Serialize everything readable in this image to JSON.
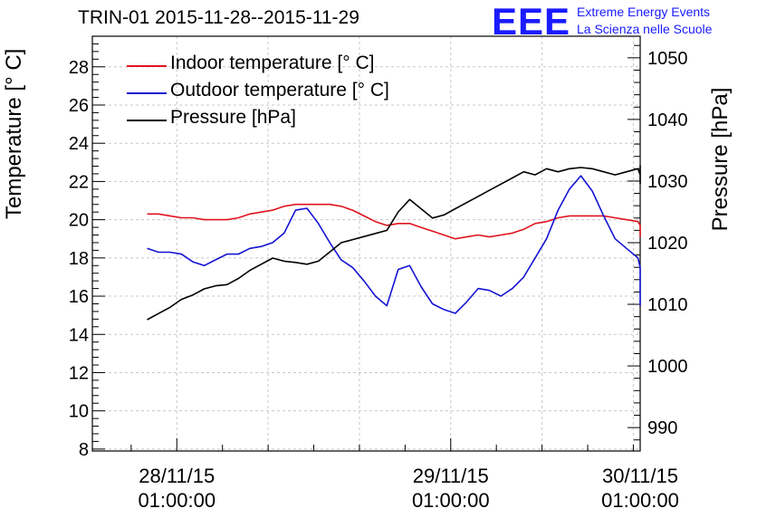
{
  "title": "TRIN-01 2015-11-28--2015-11-29",
  "branding": {
    "logo": "EEE",
    "line1": "Extreme Energy Events",
    "line2": "La Scienza nelle Scuole"
  },
  "colors": {
    "indoor": "#e0141e",
    "outdoor": "#1414d2",
    "pressure": "#000000",
    "brand": "#1a1aff",
    "grid": "#c8c8c8"
  },
  "chart_data": {
    "type": "line",
    "ylabel_left": "Temperature [° C]",
    "ylabel_right": "Pressure [hPa]",
    "ylim_left": [
      7.9,
      29.6
    ],
    "ylim_right": [
      986.2,
      1053.5
    ],
    "xlim_hours": [
      -7.4,
      40.6
    ],
    "x_ticks": [
      {
        "h": 0,
        "date": "28/11/15",
        "time": "01:00:00"
      },
      {
        "h": 24,
        "date": "29/11/15",
        "time": "01:00:00"
      },
      {
        "h": 48,
        "date": "30/11/15",
        "time": "01:00:00"
      }
    ],
    "y_ticks_left": [
      8,
      10,
      12,
      14,
      16,
      18,
      20,
      22,
      24,
      26,
      28
    ],
    "y_ticks_right": [
      990,
      1000,
      1010,
      1020,
      1030,
      1040,
      1050
    ],
    "grid": true,
    "legend_position": "top-left",
    "series": [
      {
        "name": "Indoor temperature [° C]",
        "axis": "left",
        "x": [
          -2.6,
          -1.6,
          -0.6,
          0.4,
          1.4,
          2.4,
          3.4,
          4.4,
          5.4,
          6.4,
          7.4,
          8.4,
          9.4,
          10.4,
          11.4,
          12.4,
          13.4,
          14.4,
          15.4,
          16.4,
          17.4,
          18.4,
          19.4,
          20.4,
          21.4,
          22.4,
          23.4,
          24.4,
          25.4,
          26.4,
          27.4,
          28.4,
          29.4,
          30.4,
          31.4,
          32.4,
          33.4,
          34.4,
          35.4,
          36.4,
          37.4,
          38.4,
          39.4,
          40.4,
          41.4,
          42.4,
          43.4,
          44.4,
          45.4,
          46.4
        ],
        "y": [
          20.3,
          20.3,
          20.2,
          20.1,
          20.1,
          20.0,
          20.0,
          20.0,
          20.1,
          20.3,
          20.4,
          20.5,
          20.7,
          20.8,
          20.8,
          20.8,
          20.8,
          20.7,
          20.5,
          20.2,
          19.9,
          19.7,
          19.8,
          19.8,
          19.6,
          19.4,
          19.2,
          19.0,
          19.1,
          19.2,
          19.1,
          19.2,
          19.3,
          19.5,
          19.8,
          19.9,
          20.1,
          20.2,
          20.2,
          20.2,
          20.2,
          20.1,
          20.0,
          19.9,
          19.7,
          19.5,
          19.4,
          19.3,
          19.2,
          19.1
        ]
      },
      {
        "name": "Outdoor temperature [° C]",
        "axis": "left",
        "x": [
          -2.6,
          -1.6,
          -0.6,
          0.4,
          1.4,
          2.4,
          3.4,
          4.4,
          5.4,
          6.4,
          7.4,
          8.4,
          9.4,
          10.4,
          11.4,
          12.4,
          13.4,
          14.4,
          15.4,
          16.4,
          17.4,
          18.4,
          19.4,
          20.4,
          21.4,
          22.4,
          23.4,
          24.4,
          25.4,
          26.4,
          27.4,
          28.4,
          29.4,
          30.4,
          31.4,
          32.4,
          33.4,
          34.4,
          35.4,
          36.4,
          37.4,
          38.4,
          39.4,
          40.4,
          41.4,
          42.4,
          43.4,
          44.4,
          45.4,
          46.4
        ],
        "y": [
          18.5,
          18.3,
          18.3,
          18.2,
          17.8,
          17.6,
          17.9,
          18.2,
          18.2,
          18.5,
          18.6,
          18.8,
          19.3,
          20.5,
          20.6,
          19.8,
          18.8,
          17.9,
          17.5,
          16.8,
          16.0,
          15.5,
          17.4,
          17.6,
          16.5,
          15.6,
          15.3,
          15.1,
          15.7,
          16.4,
          16.3,
          16.0,
          16.4,
          17.0,
          18.0,
          19.0,
          20.5,
          21.6,
          22.3,
          21.5,
          20.2,
          19.0,
          18.5,
          18.0,
          17.5,
          17.0,
          16.9,
          16.8,
          16.1,
          15.5
        ]
      },
      {
        "name": "Pressure [hPa]",
        "axis": "right",
        "x": [
          -2.6,
          -1.6,
          -0.6,
          0.4,
          1.4,
          2.4,
          3.4,
          4.4,
          5.4,
          6.4,
          7.4,
          8.4,
          9.4,
          10.4,
          11.4,
          12.4,
          13.4,
          14.4,
          15.4,
          16.4,
          17.4,
          18.4,
          19.4,
          20.4,
          21.4,
          22.4,
          23.4,
          24.4,
          25.4,
          26.4,
          27.4,
          28.4,
          29.4,
          30.4,
          31.4,
          32.4,
          33.4,
          34.4,
          35.4,
          36.4,
          37.4,
          38.4,
          39.4,
          40.4,
          41.4,
          42.4,
          43.4,
          44.4,
          45.4,
          46.4
        ],
        "y": [
          1007.5,
          1008.5,
          1009.5,
          1010.8,
          1011.5,
          1012.5,
          1013.0,
          1013.2,
          1014.2,
          1015.5,
          1016.5,
          1017.5,
          1017.0,
          1016.8,
          1016.5,
          1017.0,
          1018.5,
          1020.0,
          1020.5,
          1021.0,
          1021.5,
          1022.0,
          1025.0,
          1027.0,
          1025.5,
          1024.0,
          1024.5,
          1025.5,
          1026.5,
          1027.5,
          1028.5,
          1029.5,
          1030.5,
          1031.5,
          1031.0,
          1032.0,
          1031.5,
          1032.0,
          1032.2,
          1032.0,
          1031.5,
          1031.0,
          1031.5,
          1032.0,
          1031.0,
          1031.5,
          1032.5,
          1032.0,
          1031.0,
          1029.5
        ]
      }
    ]
  }
}
